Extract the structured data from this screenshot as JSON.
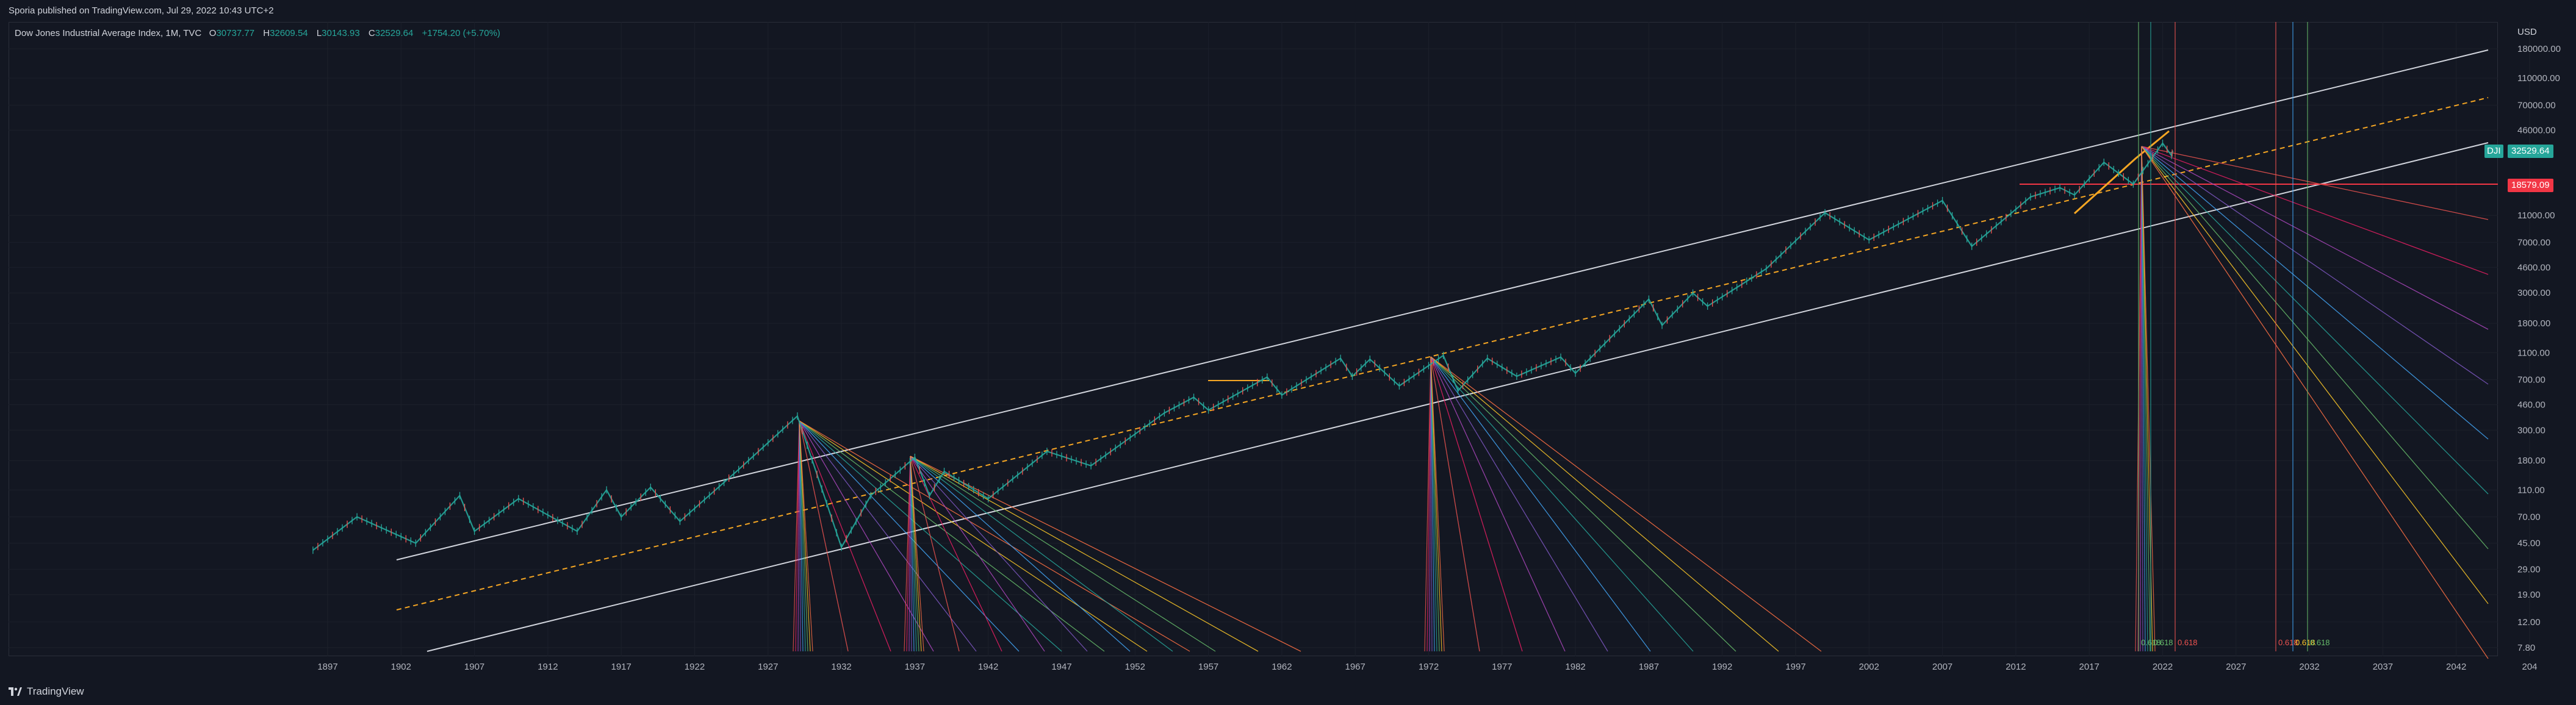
{
  "header": {
    "publish_text": "Sporia published on TradingView.com, Jul 29, 2022 10:43 UTC+2"
  },
  "legend": {
    "symbol": "Dow Jones Industrial Average Index, 1M, TVC",
    "open_label": "O",
    "open": "30737.77",
    "high_label": "H",
    "high": "32609.54",
    "low_label": "L",
    "low": "30143.93",
    "close_label": "C",
    "close": "32529.64",
    "change": "+1754.20 (+5.70%)"
  },
  "price_scale": {
    "currency": "USD",
    "ticks": [
      "180000.00",
      "110000.00",
      "70000.00",
      "46000.00",
      "11000.00",
      "7000.00",
      "4600.00",
      "3000.00",
      "1800.00",
      "1100.00",
      "700.00",
      "460.00",
      "300.00",
      "180.00",
      "110.00",
      "70.00",
      "45.00",
      "29.00",
      "19.00",
      "12.00",
      "7.80"
    ],
    "last_price_symbol": "DJI",
    "last_price": "32529.64",
    "marker_price": "18579.09"
  },
  "time_scale": {
    "ticks": [
      "1897",
      "1902",
      "1907",
      "1912",
      "1917",
      "1922",
      "1927",
      "1932",
      "1937",
      "1942",
      "1947",
      "1952",
      "1957",
      "1962",
      "1967",
      "1972",
      "1977",
      "1982",
      "1987",
      "1992",
      "1997",
      "2002",
      "2007",
      "2012",
      "2017",
      "2022",
      "2027",
      "2032",
      "2037",
      "2042",
      "204"
    ]
  },
  "annotations": {
    "fib_labels_right": [
      "0.618",
      "0.618",
      "0.618",
      "0.618",
      "0.618",
      "0.618"
    ]
  },
  "colors": {
    "up": "#26a69a",
    "down": "#ef5350",
    "bg": "#131722",
    "grid": "#1e222d",
    "marker": "#f23645",
    "dashed": "#f5a623"
  },
  "footer": {
    "brand": "TradingView",
    "brand_icon": "tradingview-logo-icon"
  }
}
